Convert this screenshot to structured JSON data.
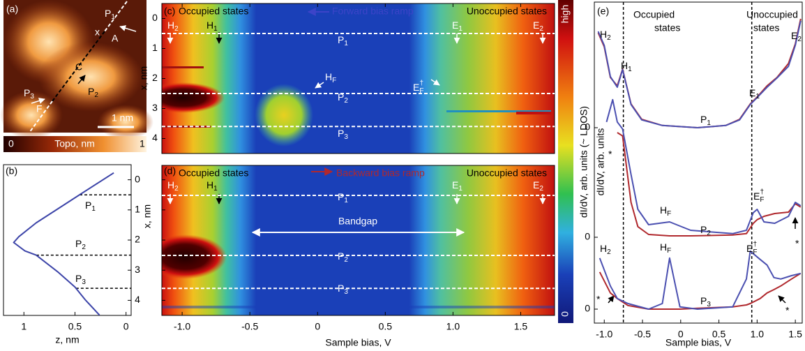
{
  "panel_a": {
    "labels": [
      "(a)",
      {
        "text": "P",
        "sub": "1"
      },
      "x",
      "A",
      "C",
      {
        "text": "P",
        "sub": "2"
      },
      {
        "text": "P",
        "sub": "3"
      },
      "F",
      "1 nm"
    ],
    "colorbar": {
      "min": "0",
      "label": "Topo, nm",
      "max": "1"
    }
  },
  "colorbar": {
    "max": "high",
    "min": "0",
    "label": "dI/dV, arb. units (~ LDOS)"
  },
  "chart_data": [
    {
      "type": "line",
      "panel": "(b)",
      "xlabel": "z, nm",
      "ylabel": "x, nm",
      "xlim": [
        1.2,
        -0.05
      ],
      "xticks": [
        1,
        0.5,
        0
      ],
      "ylim": [
        -0.5,
        4.5
      ],
      "yreverse": true,
      "yticks": [
        0,
        1,
        2,
        3,
        4
      ],
      "x": [
        0.12,
        0.46,
        0.67,
        0.88,
        1.05,
        1.1,
        0.99,
        0.88,
        0.67,
        0.5,
        0.4,
        0.26
      ],
      "series": [
        {
          "color": "#3c44a8",
          "values": [
            -0.23,
            0.51,
            0.97,
            1.43,
            1.89,
            2.08,
            2.36,
            2.5,
            3.05,
            3.56,
            3.98,
            4.49
          ]
        }
      ],
      "hlines": [
        0.5,
        2.5,
        3.6
      ],
      "labels": [
        {
          "text": "P",
          "sub": "1"
        },
        {
          "text": "P",
          "sub": "2"
        },
        {
          "text": "P",
          "sub": "3"
        }
      ]
    },
    {
      "type": "heatmap",
      "panel": "(c)",
      "title_left": "Occupied states",
      "title": "Forward bias ramp",
      "title_right": "Unoccupied states",
      "ylabel": "x, nm",
      "xlim": [
        -1.15,
        1.75
      ],
      "ylim": [
        -0.5,
        4.5
      ],
      "yreverse": true,
      "yticks": [
        0,
        1,
        2,
        3,
        4
      ],
      "hlines": [
        0.5,
        2.5,
        3.6
      ],
      "labels": [
        {
          "text": "H",
          "sub": "2"
        },
        {
          "text": "H",
          "sub": "1"
        },
        {
          "text": "P",
          "sub": "1"
        },
        {
          "text": "H",
          "sub": "F"
        },
        {
          "text": "E",
          "sub": "F",
          "sup": "†"
        },
        {
          "text": "P",
          "sub": "2"
        },
        {
          "text": "P",
          "sub": "3"
        },
        {
          "text": "E",
          "sub": "1"
        },
        {
          "text": "E",
          "sub": "2"
        }
      ]
    },
    {
      "type": "heatmap",
      "panel": "(d)",
      "title_left": "Occupied states",
      "title": "Backward bias ramp",
      "title_right": "Unoccupied states",
      "xlabel": "Sample bias, V",
      "xlim": [
        -1.15,
        1.75
      ],
      "ylim": [
        -0.5,
        4.5
      ],
      "yreverse": true,
      "xticks": [
        {
          "value": -1,
          "label": "-1.0"
        },
        {
          "value": -0.5,
          "label": "-0.5"
        },
        0,
        0.5,
        {
          "value": 1,
          "label": "1.0"
        },
        1.5
      ],
      "hlines": [
        0.5,
        2.5,
        3.6
      ],
      "labels": [
        {
          "text": "H",
          "sub": "2"
        },
        {
          "text": "H",
          "sub": "1"
        },
        {
          "text": "E",
          "sub": "1"
        },
        {
          "text": "E",
          "sub": "2"
        },
        {
          "text": "P",
          "sub": "1"
        },
        "Bandgap",
        {
          "text": "P",
          "sub": "2"
        },
        {
          "text": "P",
          "sub": "3"
        }
      ]
    },
    {
      "type": "line",
      "panel": "(e)",
      "xlim": [
        -1.13,
        1.59
      ],
      "ylim": [
        -1.2,
        4.5
      ],
      "yticks": [
        0
      ],
      "vlines": [
        -0.75,
        0.93
      ],
      "x": [
        -1.08,
        -1.0,
        -0.92,
        -0.83,
        -0.76,
        -0.65,
        -0.51,
        -0.24,
        0.22,
        0.59,
        0.77,
        0.91,
        1.0,
        1.13,
        1.26,
        1.41,
        1.5,
        1.57
      ],
      "series": [
        {
          "color": "#b0282d",
          "values": [
            3.4,
            2.9,
            1.8,
            1.5,
            2.1,
            0.85,
            0.3,
            0.08,
            0,
            0.08,
            0.3,
            0.85,
            1.1,
            1.5,
            1.8,
            2.3,
            3.0,
            3.9
          ]
        },
        {
          "color": "#4a4fb0",
          "values": [
            3.45,
            2.95,
            1.83,
            1.45,
            2.08,
            0.83,
            0.28,
            0.08,
            0,
            0.08,
            0.28,
            0.83,
            1.08,
            1.45,
            1.78,
            2.2,
            2.95,
            3.83
          ]
        }
      ],
      "labels": [
        "Occupied",
        "states",
        "Unoccupied",
        "states",
        {
          "text": "H",
          "sub": "2"
        },
        {
          "text": "H",
          "sub": "1"
        },
        {
          "text": "E",
          "sub": "1"
        },
        {
          "text": "E",
          "sub": "2"
        },
        {
          "text": "P",
          "sub": "1"
        },
        "*"
      ]
    },
    {
      "type": "line",
      "ylabel": "dI/dV, arb. units",
      "xlim": [
        -1.13,
        1.59
      ],
      "ylim": [
        -0.5,
        5.0
      ],
      "yticks": [
        0
      ],
      "x": [
        -0.97,
        -0.89,
        -0.83,
        -0.76,
        -0.65,
        -0.56,
        -0.42,
        -0.145,
        0.13,
        0.68,
        0.86,
        0.95,
        1.0,
        1.09,
        1.23,
        1.41,
        1.5,
        1.57
      ],
      "series": [
        {
          "color": "#b0282d",
          "values": [
            null,
            null,
            3.75,
            3.63,
            1.25,
            0.38,
            0.1,
            0.05,
            0.05,
            0.08,
            0.13,
            0.5,
            0.63,
            0.75,
            0.85,
            0.9,
            1.2,
            1.08
          ]
        },
        {
          "color": "#4a4fb0",
          "values": [
            4.13,
            4.93,
            4.13,
            3.88,
            2.25,
            1.0,
            0.45,
            0.55,
            0.25,
            0.13,
            0.25,
            0.88,
            1.0,
            0.55,
            0.5,
            0.75,
            1.25,
            1.13
          ]
        }
      ],
      "labels": [
        {
          "text": "H",
          "sub": "F"
        },
        {
          "text": "P",
          "sub": "2"
        },
        {
          "text": "E",
          "sub": "F",
          "sup": "†"
        },
        "*"
      ]
    },
    {
      "type": "line",
      "xlabel": "Sample bias, V",
      "xlim": [
        -1.13,
        1.59
      ],
      "ylim": [
        -0.5,
        2.5
      ],
      "yticks": [
        0
      ],
      "xticks": [
        {
          "value": -1,
          "label": "-1.0"
        },
        {
          "value": -0.5,
          "label": "-0.5"
        },
        0,
        0.5,
        {
          "value": 1,
          "label": "1.0"
        },
        1.5
      ],
      "x": [
        -1.06,
        -0.92,
        -0.83,
        -0.69,
        -0.42,
        -0.24,
        -0.145,
        -0.01,
        0.22,
        0.68,
        0.86,
        0.91,
        1.04,
        1.13,
        1.22,
        1.31,
        1.45,
        1.57
      ],
      "series": [
        {
          "color": "#b0282d",
          "values": [
            1.33,
            0.58,
            0.38,
            0.13,
            0,
            0,
            0,
            0,
            0.03,
            0.08,
            0.15,
            0.2,
            0.38,
            0.58,
            0.7,
            0.83,
            1.08,
            1.28
          ]
        },
        {
          "color": "#4a4fb0",
          "values": [
            1.83,
            0.83,
            0.38,
            0.2,
            0,
            0.2,
            1.83,
            0.08,
            0,
            0.08,
            1.08,
            2.08,
            1.78,
            1.58,
            1.13,
            1.08,
            1.2,
            1.28
          ]
        }
      ],
      "labels": [
        {
          "text": "H",
          "sub": "2"
        },
        {
          "text": "H",
          "sub": "F"
        },
        {
          "text": "E",
          "sub": "F",
          "sup": "†"
        },
        {
          "text": "P",
          "sub": "3"
        },
        "*",
        "*"
      ]
    }
  ]
}
